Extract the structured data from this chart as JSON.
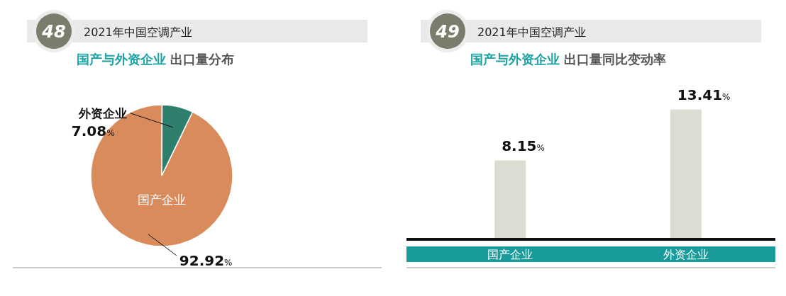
{
  "chart_data": [
    {
      "type": "pie",
      "title": "2021年中国空调产业",
      "subtitle": "国产与外资企业 出口量分布",
      "annotations": [
        "48"
      ],
      "categories": [
        "国产企业",
        "外资企业"
      ],
      "values": [
        92.92,
        7.08
      ],
      "colors": [
        "#d98b5c",
        "#2f7f6f"
      ],
      "value_labels": [
        "92.92%",
        "7.08%"
      ]
    },
    {
      "type": "bar",
      "title": "2021年中国空调产业",
      "subtitle": "国产与外资企业 出口量同比变动率",
      "annotations": [
        "49"
      ],
      "categories": [
        "国产企业",
        "外资企业"
      ],
      "values": [
        8.15,
        13.41
      ],
      "color": "#dcdcd2",
      "value_labels": [
        "8.15%",
        "13.41%"
      ]
    }
  ]
}
